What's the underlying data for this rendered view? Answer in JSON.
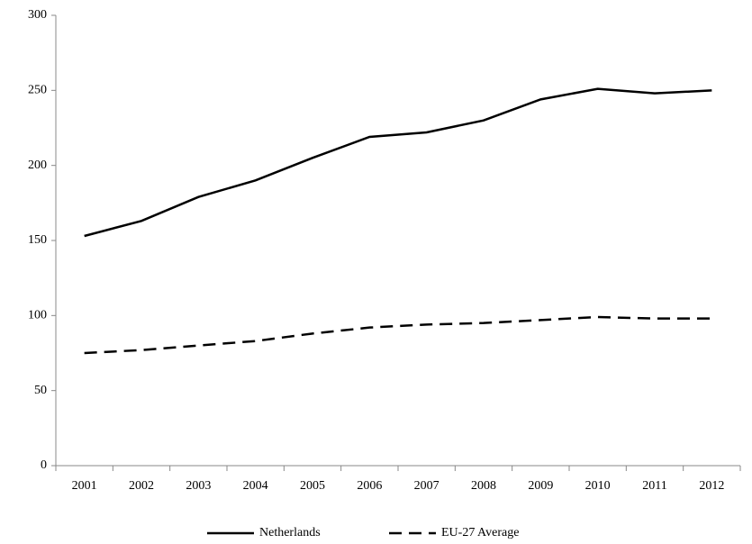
{
  "chart_data": {
    "type": "line",
    "categories": [
      "2001",
      "2002",
      "2003",
      "2004",
      "2005",
      "2006",
      "2007",
      "2008",
      "2009",
      "2010",
      "2011",
      "2012"
    ],
    "series": [
      {
        "name": "Netherlands",
        "color": "#000000",
        "line_style": "solid",
        "values": [
          153,
          163,
          179,
          190,
          205,
          219,
          222,
          230,
          244,
          251,
          248,
          250
        ]
      },
      {
        "name": "EU-27 Average",
        "color": "#000000",
        "line_style": "dashed",
        "values": [
          75,
          77,
          80,
          83,
          88,
          92,
          94,
          95,
          97,
          99,
          98,
          98
        ]
      }
    ],
    "ylim": [
      0,
      300
    ],
    "yticks": [
      0,
      50,
      100,
      150,
      200,
      250,
      300
    ],
    "legend": "bottom"
  }
}
